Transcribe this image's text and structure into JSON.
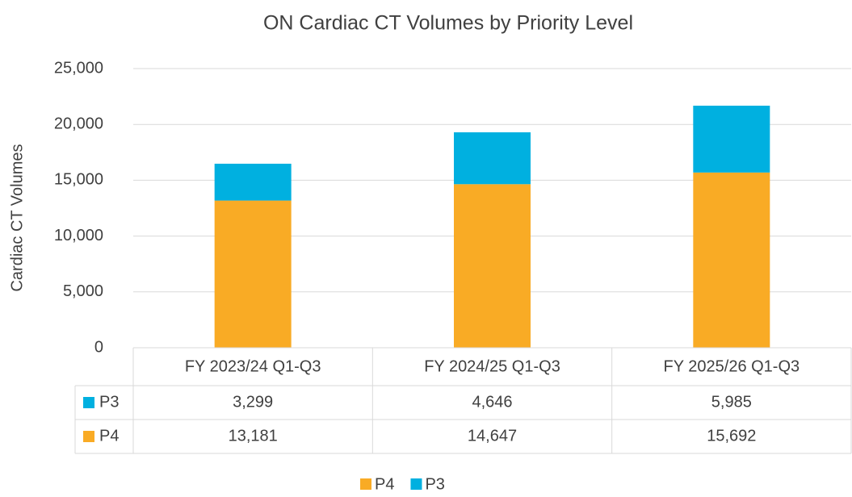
{
  "chart_data": {
    "type": "stacked_bar",
    "title": "ON Cardiac CT Volumes by Priority Level",
    "y_label": "Cardiac CT Volumes",
    "categories": [
      "FY 2023/24 Q1-Q3",
      "FY 2024/25 Q1-Q3",
      "FY 2025/26 Q1-Q3"
    ],
    "series": [
      {
        "name": "P4",
        "color": "#F9AB25",
        "values": [
          13181,
          14647,
          15692
        ],
        "value_labels": [
          "13,181",
          "14,647",
          "15,692"
        ]
      },
      {
        "name": "P3",
        "color": "#00B0E0",
        "values": [
          3299,
          4646,
          5985
        ],
        "value_labels": [
          "3,299",
          "4,646",
          "5,985"
        ]
      }
    ],
    "ylim": [
      0,
      25000
    ],
    "yticks": [
      0,
      {
        "value": 5000,
        "label": "5,000"
      },
      {
        "value": 10000,
        "label": "10,000"
      },
      {
        "value": 15000,
        "label": "15,000"
      },
      {
        "value": 20000,
        "label": "20,000"
      },
      {
        "value": 25000,
        "label": "25,000"
      }
    ],
    "grid": true,
    "legend": "bottom",
    "data_table": true
  }
}
